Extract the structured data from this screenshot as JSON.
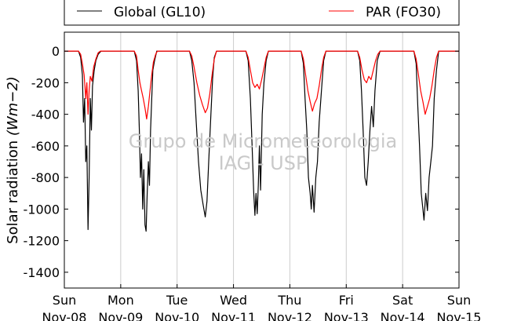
{
  "chart_data": {
    "type": "line",
    "title": "",
    "xlabel": "",
    "ylabel_prefix": "Solar radiation",
    "ylabel_units": "(Wm−2)",
    "ylim": [
      -1500,
      120
    ],
    "yticks": [
      0,
      -200,
      -400,
      -600,
      -800,
      -1000,
      -1200,
      -1400
    ],
    "xlim": [
      0,
      7
    ],
    "xticks": [
      {
        "x": 0,
        "day": "Sun",
        "date": "Nov-08"
      },
      {
        "x": 1,
        "day": "Mon",
        "date": "Nov-09"
      },
      {
        "x": 2,
        "day": "Tue",
        "date": "Nov-10"
      },
      {
        "x": 3,
        "day": "Wed",
        "date": "Nov-11"
      },
      {
        "x": 4,
        "day": "Thu",
        "date": "Nov-12"
      },
      {
        "x": 5,
        "day": "Fri",
        "date": "Nov-13"
      },
      {
        "x": 6,
        "day": "Sat",
        "date": "Nov-14"
      },
      {
        "x": 7,
        "day": "Sun",
        "date": "Nov-15"
      }
    ],
    "grid": "vertical",
    "legend_position": "top",
    "watermark": [
      "Grupo de Micrometeorologia",
      "IAG - USP"
    ],
    "series": [
      {
        "name": "Global (GL10)",
        "color": "#000000",
        "points": [
          [
            0,
            0
          ],
          [
            0.25,
            0
          ],
          [
            0.29,
            -40
          ],
          [
            0.32,
            -150
          ],
          [
            0.34,
            -450
          ],
          [
            0.36,
            -300
          ],
          [
            0.38,
            -700
          ],
          [
            0.4,
            -600
          ],
          [
            0.42,
            -1130
          ],
          [
            0.44,
            -800
          ],
          [
            0.46,
            -300
          ],
          [
            0.48,
            -500
          ],
          [
            0.5,
            -220
          ],
          [
            0.53,
            -120
          ],
          [
            0.56,
            -60
          ],
          [
            0.6,
            -20
          ],
          [
            0.65,
            0
          ],
          [
            1,
            0
          ],
          [
            1.24,
            0
          ],
          [
            1.28,
            -60
          ],
          [
            1.31,
            -250
          ],
          [
            1.33,
            -500
          ],
          [
            1.35,
            -800
          ],
          [
            1.37,
            -650
          ],
          [
            1.39,
            -1000
          ],
          [
            1.41,
            -750
          ],
          [
            1.43,
            -1100
          ],
          [
            1.45,
            -1140
          ],
          [
            1.47,
            -900
          ],
          [
            1.49,
            -700
          ],
          [
            1.51,
            -850
          ],
          [
            1.53,
            -500
          ],
          [
            1.55,
            -300
          ],
          [
            1.57,
            -120
          ],
          [
            1.6,
            -60
          ],
          [
            1.64,
            0
          ],
          [
            2,
            0
          ],
          [
            2.22,
            0
          ],
          [
            2.26,
            -60
          ],
          [
            2.3,
            -200
          ],
          [
            2.34,
            -450
          ],
          [
            2.38,
            -700
          ],
          [
            2.42,
            -880
          ],
          [
            2.46,
            -970
          ],
          [
            2.5,
            -1050
          ],
          [
            2.53,
            -950
          ],
          [
            2.56,
            -700
          ],
          [
            2.6,
            -400
          ],
          [
            2.63,
            -170
          ],
          [
            2.66,
            -40
          ],
          [
            2.7,
            0
          ],
          [
            3,
            0
          ],
          [
            3.22,
            0
          ],
          [
            3.26,
            -60
          ],
          [
            3.3,
            -300
          ],
          [
            3.33,
            -600
          ],
          [
            3.36,
            -900
          ],
          [
            3.38,
            -1040
          ],
          [
            3.4,
            -900
          ],
          [
            3.42,
            -1030
          ],
          [
            3.44,
            -850
          ],
          [
            3.46,
            -600
          ],
          [
            3.48,
            -880
          ],
          [
            3.51,
            -400
          ],
          [
            3.54,
            -200
          ],
          [
            3.58,
            -60
          ],
          [
            3.62,
            0
          ],
          [
            4,
            0
          ],
          [
            4.2,
            0
          ],
          [
            4.24,
            -80
          ],
          [
            4.27,
            -300
          ],
          [
            4.3,
            -500
          ],
          [
            4.33,
            -800
          ],
          [
            4.36,
            -900
          ],
          [
            4.38,
            -1000
          ],
          [
            4.4,
            -850
          ],
          [
            4.43,
            -1020
          ],
          [
            4.46,
            -800
          ],
          [
            4.49,
            -700
          ],
          [
            4.52,
            -450
          ],
          [
            4.56,
            -250
          ],
          [
            4.6,
            -60
          ],
          [
            4.64,
            0
          ],
          [
            5,
            0
          ],
          [
            5.2,
            0
          ],
          [
            5.24,
            -60
          ],
          [
            5.27,
            -250
          ],
          [
            5.3,
            -500
          ],
          [
            5.33,
            -800
          ],
          [
            5.36,
            -850
          ],
          [
            5.39,
            -700
          ],
          [
            5.42,
            -500
          ],
          [
            5.45,
            -350
          ],
          [
            5.48,
            -480
          ],
          [
            5.51,
            -250
          ],
          [
            5.55,
            -60
          ],
          [
            5.6,
            0
          ],
          [
            6,
            0
          ],
          [
            6.2,
            0
          ],
          [
            6.24,
            -80
          ],
          [
            6.27,
            -350
          ],
          [
            6.3,
            -600
          ],
          [
            6.33,
            -900
          ],
          [
            6.36,
            -1000
          ],
          [
            6.38,
            -1070
          ],
          [
            6.41,
            -900
          ],
          [
            6.44,
            -1010
          ],
          [
            6.47,
            -800
          ],
          [
            6.5,
            -700
          ],
          [
            6.53,
            -600
          ],
          [
            6.56,
            -300
          ],
          [
            6.6,
            -120
          ],
          [
            6.64,
            0
          ],
          [
            7,
            0
          ]
        ]
      },
      {
        "name": "PAR (FO30)",
        "color": "#ff0000",
        "points": [
          [
            0,
            0
          ],
          [
            0.25,
            0
          ],
          [
            0.29,
            -20
          ],
          [
            0.32,
            -80
          ],
          [
            0.35,
            -150
          ],
          [
            0.38,
            -300
          ],
          [
            0.4,
            -200
          ],
          [
            0.42,
            -400
          ],
          [
            0.44,
            -250
          ],
          [
            0.46,
            -160
          ],
          [
            0.49,
            -190
          ],
          [
            0.52,
            -100
          ],
          [
            0.56,
            -50
          ],
          [
            0.6,
            -10
          ],
          [
            0.64,
            0
          ],
          [
            1,
            0
          ],
          [
            1.24,
            0
          ],
          [
            1.28,
            -30
          ],
          [
            1.31,
            -120
          ],
          [
            1.34,
            -200
          ],
          [
            1.37,
            -250
          ],
          [
            1.4,
            -300
          ],
          [
            1.43,
            -360
          ],
          [
            1.46,
            -430
          ],
          [
            1.49,
            -350
          ],
          [
            1.52,
            -250
          ],
          [
            1.55,
            -150
          ],
          [
            1.58,
            -70
          ],
          [
            1.62,
            -20
          ],
          [
            1.65,
            0
          ],
          [
            2,
            0
          ],
          [
            2.22,
            0
          ],
          [
            2.26,
            -30
          ],
          [
            2.3,
            -100
          ],
          [
            2.35,
            -200
          ],
          [
            2.4,
            -280
          ],
          [
            2.45,
            -340
          ],
          [
            2.5,
            -390
          ],
          [
            2.54,
            -360
          ],
          [
            2.58,
            -270
          ],
          [
            2.62,
            -150
          ],
          [
            2.66,
            -50
          ],
          [
            2.7,
            0
          ],
          [
            3,
            0
          ],
          [
            3.22,
            0
          ],
          [
            3.26,
            -40
          ],
          [
            3.3,
            -120
          ],
          [
            3.34,
            -200
          ],
          [
            3.38,
            -230
          ],
          [
            3.42,
            -210
          ],
          [
            3.46,
            -240
          ],
          [
            3.5,
            -180
          ],
          [
            3.54,
            -110
          ],
          [
            3.58,
            -40
          ],
          [
            3.62,
            0
          ],
          [
            4,
            0
          ],
          [
            4.2,
            0
          ],
          [
            4.24,
            -50
          ],
          [
            4.28,
            -150
          ],
          [
            4.32,
            -250
          ],
          [
            4.36,
            -320
          ],
          [
            4.4,
            -380
          ],
          [
            4.44,
            -330
          ],
          [
            4.48,
            -300
          ],
          [
            4.52,
            -220
          ],
          [
            4.56,
            -120
          ],
          [
            4.6,
            -40
          ],
          [
            4.64,
            0
          ],
          [
            5,
            0
          ],
          [
            5.2,
            0
          ],
          [
            5.24,
            -40
          ],
          [
            5.28,
            -120
          ],
          [
            5.32,
            -180
          ],
          [
            5.36,
            -200
          ],
          [
            5.4,
            -160
          ],
          [
            5.44,
            -180
          ],
          [
            5.48,
            -120
          ],
          [
            5.52,
            -60
          ],
          [
            5.56,
            -20
          ],
          [
            5.6,
            0
          ],
          [
            6,
            0
          ],
          [
            6.2,
            0
          ],
          [
            6.24,
            -50
          ],
          [
            6.28,
            -150
          ],
          [
            6.32,
            -250
          ],
          [
            6.36,
            -320
          ],
          [
            6.4,
            -400
          ],
          [
            6.44,
            -350
          ],
          [
            6.48,
            -300
          ],
          [
            6.52,
            -220
          ],
          [
            6.56,
            -120
          ],
          [
            6.6,
            -40
          ],
          [
            6.64,
            0
          ],
          [
            7,
            0
          ]
        ]
      }
    ]
  }
}
